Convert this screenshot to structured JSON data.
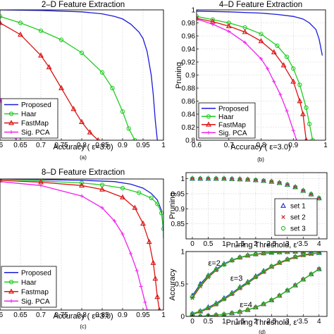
{
  "chart_data": [
    {
      "id": "a",
      "type": "line",
      "title": "2–D Feature Extraction",
      "xlabel": "Accuracy (  ε=3.0)",
      "ylabel": "",
      "caption": "(a)",
      "xlim": [
        0.6,
        1.0
      ],
      "ylim": [
        0.0,
        1.0
      ],
      "xticks": [
        0.6,
        0.65,
        0.7,
        0.75,
        0.8,
        0.85,
        0.9,
        0.95,
        1.0
      ],
      "xtick_labels": [
        ".6",
        "0.65",
        "0.7",
        "0.75",
        "0.8",
        "0.85",
        "0.9",
        "0.95",
        "1"
      ],
      "yticks": [],
      "ytick_labels": [],
      "grid": true,
      "legend_position": "bottom-left",
      "series": [
        {
          "name": "Proposed",
          "color": "#1a1adb",
          "marker": "none",
          "x": [
            0.6,
            0.7,
            0.8,
            0.85,
            0.88,
            0.9,
            0.92,
            0.94,
            0.95,
            0.96,
            0.97,
            0.975,
            0.98,
            0.985
          ],
          "y": [
            1.0,
            0.995,
            0.985,
            0.97,
            0.95,
            0.93,
            0.89,
            0.83,
            0.78,
            0.68,
            0.5,
            0.35,
            0.15,
            0.0
          ]
        },
        {
          "name": "Haar",
          "color": "#22cc22",
          "marker": "circle",
          "x": [
            0.6,
            0.65,
            0.7,
            0.75,
            0.8,
            0.85,
            0.875,
            0.9,
            0.915,
            0.93
          ],
          "y": [
            0.95,
            0.9,
            0.84,
            0.77,
            0.67,
            0.52,
            0.4,
            0.22,
            0.09,
            0.0
          ]
        },
        {
          "name": "FastMap",
          "color": "#dd1111",
          "marker": "triangle",
          "x": [
            0.6,
            0.65,
            0.7,
            0.72,
            0.75,
            0.78,
            0.8,
            0.82,
            0.84
          ],
          "y": [
            0.9,
            0.81,
            0.65,
            0.56,
            0.4,
            0.24,
            0.14,
            0.06,
            0.0
          ]
        },
        {
          "name": "Sig. PCA",
          "color": "#ee22ee",
          "marker": "plus",
          "x": [
            0.6,
            0.61,
            0.62,
            0.63,
            0.64
          ],
          "y": [
            0.32,
            0.22,
            0.13,
            0.06,
            0.0
          ]
        }
      ]
    },
    {
      "id": "b",
      "type": "line",
      "title": "4–D Feature Extraction",
      "xlabel": "Accuracy (  ε=3.0)",
      "ylabel": "Pruning",
      "caption": "(b)",
      "xlim": [
        0.6,
        1.0
      ],
      "ylim": [
        0.8,
        1.0
      ],
      "xticks": [
        0.6,
        0.7,
        0.8,
        0.9,
        1.0
      ],
      "xtick_labels": [
        "0.6",
        "0.7",
        "0.8",
        "0.9",
        "1"
      ],
      "yticks": [
        0.8,
        0.82,
        0.84,
        0.86,
        0.88,
        0.9,
        0.92,
        0.94,
        0.96,
        0.98,
        1.0
      ],
      "ytick_labels": [
        "0.8",
        "0.82",
        "0.84",
        "0.86",
        "0.88",
        "0.9",
        "0.92",
        "0.94",
        "0.96",
        "0.98",
        "1"
      ],
      "grid": true,
      "legend_position": "bottom-left",
      "series": [
        {
          "name": "Proposed",
          "color": "#1a1adb",
          "marker": "none",
          "x": [
            0.6,
            0.7,
            0.8,
            0.85,
            0.9,
            0.93,
            0.95,
            0.97,
            0.98,
            0.99
          ],
          "y": [
            0.998,
            0.997,
            0.995,
            0.993,
            0.99,
            0.986,
            0.98,
            0.97,
            0.955,
            0.93
          ]
        },
        {
          "name": "Haar",
          "color": "#22cc22",
          "marker": "circle",
          "x": [
            0.6,
            0.65,
            0.7,
            0.75,
            0.8,
            0.85,
            0.88,
            0.9,
            0.92,
            0.94,
            0.95,
            0.96
          ],
          "y": [
            0.99,
            0.985,
            0.98,
            0.973,
            0.963,
            0.945,
            0.928,
            0.91,
            0.885,
            0.85,
            0.825,
            0.8
          ]
        },
        {
          "name": "FastMap",
          "color": "#dd1111",
          "marker": "triangle",
          "x": [
            0.6,
            0.65,
            0.7,
            0.75,
            0.8,
            0.84,
            0.87,
            0.9,
            0.92,
            0.93,
            0.94
          ],
          "y": [
            0.987,
            0.982,
            0.975,
            0.966,
            0.952,
            0.935,
            0.915,
            0.89,
            0.86,
            0.84,
            0.8
          ]
        },
        {
          "name": "Sig. PCA",
          "color": "#ee22ee",
          "marker": "plus",
          "x": [
            0.6,
            0.65,
            0.7,
            0.75,
            0.8,
            0.82,
            0.84,
            0.86,
            0.88,
            0.9,
            0.91
          ],
          "y": [
            0.986,
            0.978,
            0.967,
            0.95,
            0.925,
            0.91,
            0.89,
            0.87,
            0.845,
            0.815,
            0.8
          ]
        }
      ]
    },
    {
      "id": "c",
      "type": "line",
      "title": "8–D Feature Extraction",
      "xlabel": "Accuracy (  ε=3.0)",
      "ylabel": "",
      "caption": "(c)",
      "xlim": [
        0.6,
        1.0
      ],
      "ylim": [
        0.0,
        1.0
      ],
      "xticks": [
        0.6,
        0.65,
        0.7,
        0.75,
        0.8,
        0.85,
        0.9,
        0.95,
        1.0
      ],
      "xtick_labels": [
        ".6",
        "0.65",
        "0.7",
        "0.75",
        "0.8",
        "0.85",
        "0.9",
        "0.95",
        "1"
      ],
      "yticks": [],
      "ytick_labels": [],
      "grid": true,
      "legend_position": "bottom-left",
      "series": [
        {
          "name": "Proposed",
          "color": "#1a1adb",
          "marker": "none",
          "x": [
            0.6,
            0.7,
            0.8,
            0.88,
            0.92,
            0.95,
            0.97,
            0.985,
            0.995,
            1.0,
            1.0
          ],
          "y": [
            1.0,
            0.995,
            0.99,
            0.98,
            0.96,
            0.93,
            0.89,
            0.84,
            0.76,
            0.6,
            0.55
          ]
        },
        {
          "name": "Haar",
          "color": "#22cc22",
          "marker": "circle",
          "x": [
            0.6,
            0.7,
            0.8,
            0.85,
            0.9,
            0.94,
            0.97,
            0.985,
            0.995,
            1.0
          ],
          "y": [
            0.99,
            0.985,
            0.97,
            0.955,
            0.93,
            0.895,
            0.855,
            0.81,
            0.74,
            0.62
          ]
        },
        {
          "name": "Fastmap",
          "color": "#dd1111",
          "marker": "triangle",
          "x": [
            0.6,
            0.7,
            0.8,
            0.85,
            0.9,
            0.93,
            0.95,
            0.965,
            0.975,
            0.98,
            0.985,
            0.99
          ],
          "y": [
            0.99,
            0.975,
            0.95,
            0.92,
            0.86,
            0.78,
            0.66,
            0.52,
            0.36,
            0.24,
            0.1,
            0.0
          ]
        },
        {
          "name": "Sig. PCA",
          "color": "#ee22ee",
          "marker": "plus",
          "x": [
            0.6,
            0.7,
            0.8,
            0.85,
            0.88,
            0.9,
            0.92,
            0.935,
            0.945,
            0.955,
            0.96
          ],
          "y": [
            0.98,
            0.95,
            0.87,
            0.78,
            0.68,
            0.58,
            0.43,
            0.3,
            0.18,
            0.06,
            0.0
          ]
        }
      ]
    },
    {
      "id": "d-top",
      "type": "scatter",
      "title": "",
      "xlabel": "Pruning Threshold,  ε'",
      "ylabel": "Pruning",
      "caption": "",
      "xlim": [
        -0.2,
        4.25
      ],
      "ylim": [
        0.8,
        1.02
      ],
      "xticks": [
        0,
        0.5,
        1,
        1.5,
        2,
        2.5,
        3,
        3.5,
        4
      ],
      "xtick_labels": [
        "0",
        "0.5",
        "1",
        "1.5",
        "2",
        "2.5",
        "3",
        "3.5",
        "4"
      ],
      "yticks": [
        0.85,
        0.9,
        0.95,
        1.0
      ],
      "ytick_labels": [
        "0.85",
        "0.9",
        "0.95",
        "1"
      ],
      "grid": true,
      "legend_position": "bottom-right",
      "series": [
        {
          "name": "set 1",
          "color": "#2233cc",
          "marker": "triangle",
          "x": [
            0,
            0.25,
            0.5,
            0.75,
            1,
            1.25,
            1.5,
            1.75,
            2,
            2.25,
            2.5,
            2.75,
            3,
            3.25,
            3.5,
            3.75,
            4
          ],
          "y": [
            1.0,
            1.0,
            1.0,
            1.0,
            1.0,
            0.999,
            0.998,
            0.997,
            0.995,
            0.993,
            0.99,
            0.986,
            0.98,
            0.972,
            0.96,
            0.948,
            0.935
          ]
        },
        {
          "name": "set 2",
          "color": "#cc2222",
          "marker": "cross",
          "x": [
            0,
            0.25,
            0.5,
            0.75,
            1,
            1.25,
            1.5,
            1.75,
            2,
            2.25,
            2.5,
            2.75,
            3,
            3.25,
            3.5,
            3.75,
            4
          ],
          "y": [
            1.0,
            1.0,
            1.0,
            1.0,
            1.0,
            0.999,
            0.998,
            0.997,
            0.995,
            0.993,
            0.99,
            0.986,
            0.98,
            0.972,
            0.96,
            0.948,
            0.935
          ]
        },
        {
          "name": "set 3",
          "color": "#22bb22",
          "marker": "circle",
          "x": [
            0,
            0.25,
            0.5,
            0.75,
            1,
            1.25,
            1.5,
            1.75,
            2,
            2.25,
            2.5,
            2.75,
            3,
            3.25,
            3.5,
            3.75,
            4
          ],
          "y": [
            1.0,
            1.0,
            1.0,
            1.0,
            1.0,
            0.999,
            0.998,
            0.997,
            0.995,
            0.993,
            0.99,
            0.986,
            0.98,
            0.972,
            0.96,
            0.948,
            0.935
          ]
        }
      ]
    },
    {
      "id": "d-bottom",
      "type": "line",
      "title": "",
      "xlabel": "Pruning Threshold,  ε'",
      "ylabel": "Accuracy",
      "caption": "(d)",
      "xlim": [
        -0.2,
        4.25
      ],
      "ylim": [
        0.0,
        1.0
      ],
      "xticks": [
        0,
        0.5,
        1,
        1.5,
        2,
        2.5,
        3,
        3.5,
        4
      ],
      "xtick_labels": [
        "0",
        "0.5",
        "1",
        "1.5",
        "2",
        "2.5",
        "3",
        "3.5",
        "4"
      ],
      "yticks": [
        0,
        0.5,
        1.0
      ],
      "ytick_labels": [
        "0",
        "0.5",
        "1"
      ],
      "grid": true,
      "annotations": [
        {
          "text": "ε=2",
          "x": 0.5,
          "y": 0.78
        },
        {
          "text": "ε=3",
          "x": 1.2,
          "y": 0.55
        },
        {
          "text": "ε=4",
          "x": 1.5,
          "y": 0.14
        }
      ],
      "series": [
        {
          "name": "ε=2 set 1",
          "color": "#2233cc",
          "marker": "triangle",
          "x": [
            0,
            0.25,
            0.5,
            0.75,
            1,
            1.25,
            1.5,
            1.75,
            2,
            2.25,
            2.5,
            2.75,
            3,
            3.25,
            3.5,
            3.75,
            4
          ],
          "y": [
            0.32,
            0.5,
            0.63,
            0.73,
            0.81,
            0.87,
            0.91,
            0.94,
            0.96,
            0.975,
            0.985,
            0.99,
            0.995,
            1.0,
            1.0,
            1.0,
            1.0
          ]
        },
        {
          "name": "ε=2 set 2",
          "color": "#cc2222",
          "marker": "cross",
          "x": [
            0,
            0.25,
            0.5,
            0.75,
            1,
            1.25,
            1.5,
            1.75,
            2,
            2.25,
            2.5,
            2.75,
            3,
            3.25,
            3.5,
            3.75,
            4
          ],
          "y": [
            0.28,
            0.46,
            0.6,
            0.71,
            0.8,
            0.86,
            0.905,
            0.935,
            0.955,
            0.97,
            0.98,
            0.99,
            0.995,
            1.0,
            1.0,
            1.0,
            1.0
          ]
        },
        {
          "name": "ε=2 set 3",
          "color": "#22bb22",
          "marker": "circle",
          "x": [
            0,
            0.25,
            0.5,
            0.75,
            1,
            1.25,
            1.5,
            1.75,
            2,
            2.25,
            2.5,
            2.75,
            3,
            3.25,
            3.5,
            3.75,
            4
          ],
          "y": [
            0.3,
            0.48,
            0.62,
            0.72,
            0.8,
            0.865,
            0.91,
            0.94,
            0.96,
            0.975,
            0.985,
            0.99,
            0.995,
            1.0,
            1.0,
            1.0,
            1.0
          ]
        },
        {
          "name": "ε=3 set 1",
          "color": "#2233cc",
          "marker": "triangle",
          "x": [
            0,
            0.25,
            0.5,
            0.75,
            1,
            1.25,
            1.5,
            1.75,
            2,
            2.25,
            2.5,
            2.75,
            3,
            3.25,
            3.5,
            3.75,
            4
          ],
          "y": [
            0.04,
            0.08,
            0.14,
            0.2,
            0.28,
            0.36,
            0.45,
            0.53,
            0.62,
            0.7,
            0.77,
            0.83,
            0.88,
            0.92,
            0.95,
            0.97,
            0.98
          ]
        },
        {
          "name": "ε=3 set 2",
          "color": "#cc2222",
          "marker": "cross",
          "x": [
            0,
            0.25,
            0.5,
            0.75,
            1,
            1.25,
            1.5,
            1.75,
            2,
            2.25,
            2.5,
            2.75,
            3,
            3.25,
            3.5,
            3.75,
            4
          ],
          "y": [
            0.03,
            0.07,
            0.12,
            0.18,
            0.26,
            0.34,
            0.43,
            0.51,
            0.6,
            0.68,
            0.76,
            0.82,
            0.87,
            0.91,
            0.94,
            0.96,
            0.98
          ]
        },
        {
          "name": "ε=3 set 3",
          "color": "#22bb22",
          "marker": "circle",
          "x": [
            0,
            0.25,
            0.5,
            0.75,
            1,
            1.25,
            1.5,
            1.75,
            2,
            2.25,
            2.5,
            2.75,
            3,
            3.25,
            3.5,
            3.75,
            4
          ],
          "y": [
            0.04,
            0.08,
            0.13,
            0.19,
            0.27,
            0.35,
            0.44,
            0.52,
            0.61,
            0.69,
            0.77,
            0.83,
            0.88,
            0.92,
            0.95,
            0.97,
            0.98
          ]
        },
        {
          "name": "ε=4 set 1",
          "color": "#2233cc",
          "marker": "triangle",
          "x": [
            0,
            0.25,
            0.5,
            0.75,
            1,
            1.25,
            1.5,
            1.75,
            2,
            2.25,
            2.5,
            2.75,
            3,
            3.25,
            3.5,
            3.75,
            4
          ],
          "y": [
            0.0,
            0.0,
            0.01,
            0.02,
            0.03,
            0.05,
            0.07,
            0.1,
            0.14,
            0.19,
            0.25,
            0.32,
            0.4,
            0.48,
            0.57,
            0.65,
            0.73
          ]
        },
        {
          "name": "ε=4 set 2",
          "color": "#cc2222",
          "marker": "cross",
          "x": [
            0,
            0.25,
            0.5,
            0.75,
            1,
            1.25,
            1.5,
            1.75,
            2,
            2.25,
            2.5,
            2.75,
            3,
            3.25,
            3.5,
            3.75,
            4
          ],
          "y": [
            0.0,
            0.0,
            0.01,
            0.02,
            0.03,
            0.05,
            0.07,
            0.1,
            0.14,
            0.19,
            0.25,
            0.32,
            0.4,
            0.48,
            0.57,
            0.65,
            0.73
          ]
        },
        {
          "name": "ε=4 set 3",
          "color": "#22bb22",
          "marker": "circle",
          "x": [
            0,
            0.25,
            0.5,
            0.75,
            1,
            1.25,
            1.5,
            1.75,
            2,
            2.25,
            2.5,
            2.75,
            3,
            3.25,
            3.5,
            3.75,
            4
          ],
          "y": [
            0.0,
            0.0,
            0.01,
            0.02,
            0.03,
            0.05,
            0.07,
            0.1,
            0.14,
            0.19,
            0.25,
            0.32,
            0.4,
            0.48,
            0.57,
            0.65,
            0.73
          ]
        }
      ]
    }
  ]
}
